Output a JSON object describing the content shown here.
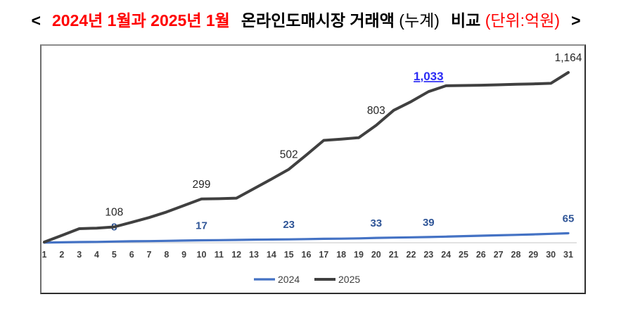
{
  "title": {
    "bracket_left": "<",
    "period": "2024년 1월과 2025년 1월",
    "market": "온라인도매시장 거래액",
    "cumulative_note": "(누계)",
    "compare": "비교",
    "unit_note": "(단위:억원)",
    "bracket_right": ">"
  },
  "colors": {
    "title_red": "#FF0000",
    "title_black": "#000000",
    "series_2024": "#4472C4",
    "series_2025": "#404040",
    "label_2024": "#2F5597",
    "label_2025": "#262626",
    "highlight_label": "#2B2BF5",
    "axis_line": "#D9D9D9",
    "tick_label": "#404040",
    "legend_text": "#404040",
    "chart_border": "#595959"
  },
  "chart_data": {
    "type": "line",
    "title": "2024년 1월과 2025년 1월 온라인도매시장 거래액(누계) 비교",
    "unit": "억원",
    "xlabel": "",
    "ylabel": "",
    "grid": false,
    "legend_position": "bottom-center",
    "ylim": [
      0,
      1164
    ],
    "x": [
      1,
      2,
      3,
      4,
      5,
      6,
      7,
      8,
      9,
      10,
      11,
      12,
      13,
      14,
      15,
      16,
      17,
      18,
      19,
      20,
      21,
      22,
      23,
      24,
      25,
      26,
      27,
      28,
      29,
      30,
      31
    ],
    "series": [
      {
        "name": "2024",
        "color": "#4472C4",
        "values": [
          1,
          3,
          5,
          6,
          8,
          10,
          11,
          13,
          15,
          17,
          18,
          19,
          21,
          22,
          23,
          25,
          27,
          28,
          30,
          33,
          35,
          37,
          39,
          42,
          45,
          48,
          51,
          54,
          57,
          61,
          65
        ],
        "labels": [
          {
            "day": 5,
            "text": "8"
          },
          {
            "day": 10,
            "text": "17"
          },
          {
            "day": 15,
            "text": "23"
          },
          {
            "day": 20,
            "text": "33"
          },
          {
            "day": 23,
            "text": "39"
          },
          {
            "day": 31,
            "text": "65"
          }
        ]
      },
      {
        "name": "2025",
        "color": "#404040",
        "values": [
          5,
          50,
          96,
          100,
          108,
          140,
          172,
          210,
          255,
          299,
          301,
          305,
          370,
          435,
          502,
          600,
          700,
          708,
          718,
          803,
          905,
          965,
          1033,
          1073,
          1075,
          1077,
          1080,
          1083,
          1086,
          1090,
          1164
        ],
        "labels": [
          {
            "day": 5,
            "text": "108"
          },
          {
            "day": 10,
            "text": "299"
          },
          {
            "day": 15,
            "text": "502"
          },
          {
            "day": 20,
            "text": "803"
          },
          {
            "day": 23,
            "text": "1,033",
            "highlight": true
          },
          {
            "day": 31,
            "text": "1,164"
          }
        ]
      }
    ]
  }
}
